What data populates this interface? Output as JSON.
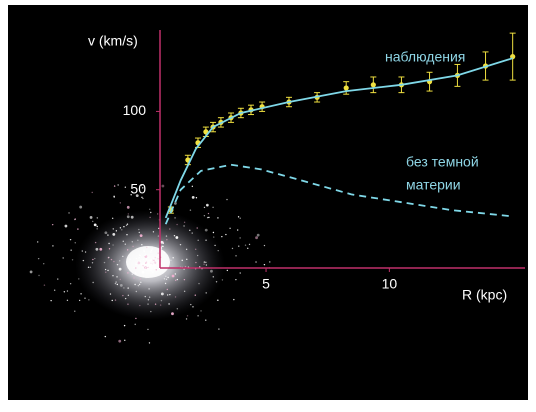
{
  "chart_data": {
    "type": "line",
    "x_label": "R (kpc)",
    "y_label": "v (km/s)",
    "xlim": [
      0.7,
      15.5
    ],
    "ylim": [
      0,
      152
    ],
    "xticks": [
      5,
      10
    ],
    "yticks": [
      50,
      100
    ],
    "axis_color": "#c0306a",
    "series": [
      {
        "name": "наблюдения",
        "color": "#f0e040",
        "x": [
          1.14,
          1.83,
          2.24,
          2.56,
          2.85,
          3.17,
          3.58,
          3.98,
          4.39,
          4.84,
          5.93,
          7.07,
          8.25,
          9.35,
          10.49,
          11.63,
          12.76,
          13.9,
          15.0
        ],
        "values": [
          37,
          69,
          80,
          87,
          90,
          93,
          96,
          99,
          101,
          103,
          106,
          109,
          115,
          117,
          117,
          119,
          123,
          129,
          135
        ],
        "errors": [
          2,
          3,
          3,
          3,
          3,
          3,
          3,
          3,
          3,
          3,
          3,
          3,
          4,
          5,
          5,
          6,
          7,
          9,
          15
        ]
      },
      {
        "color": "#7fd8e8",
        "x": [
          0.93,
          1.54,
          2.15,
          2.85,
          3.98,
          5.93,
          8.25,
          10.49,
          12.76,
          15.0
        ],
        "values": [
          32,
          56,
          76,
          90,
          99,
          106,
          113,
          117,
          123,
          134
        ]
      },
      {
        "color": "#7fd8e8",
        "dashed": true,
        "x": [
          0.93,
          1.54,
          2.36,
          3.58,
          4.8,
          6.42,
          8.46,
          10.49,
          12.52,
          14.96
        ],
        "values": [
          28,
          50,
          62,
          66,
          63,
          56,
          47,
          42,
          37,
          33
        ]
      }
    ],
    "annotations": [
      "наблюдения",
      "без темной",
      "материи"
    ]
  }
}
